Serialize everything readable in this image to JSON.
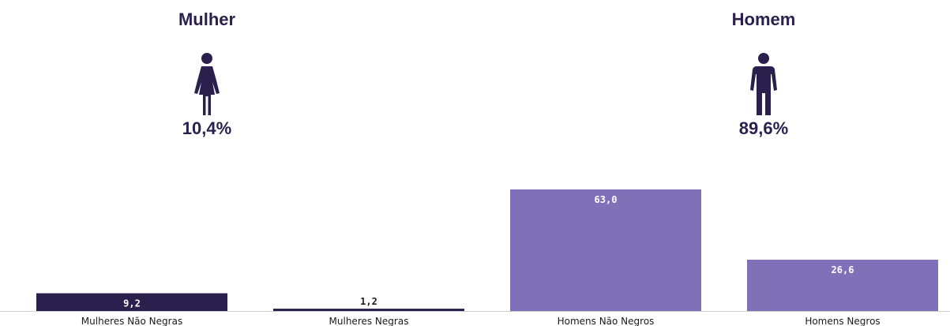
{
  "groups": {
    "female": {
      "title": "Mulher",
      "percent": "10,4%"
    },
    "male": {
      "title": "Homem",
      "percent": "89,6%"
    }
  },
  "colors": {
    "dark_bar": "#2a1f4d",
    "light_bar": "#8070b8",
    "text": "#2a1f4d"
  },
  "icons": {
    "female": "female-person-icon",
    "male": "male-person-icon"
  },
  "chart_data": {
    "type": "bar",
    "categories": [
      "Mulheres Não Negras",
      "Mulheres Negras",
      "Homens Não Negros",
      "Homens Negros"
    ],
    "values": [
      9.2,
      1.2,
      63.0,
      26.6
    ],
    "value_labels": [
      "9,2",
      "1,2",
      "63,0",
      "26,6"
    ],
    "bar_colors": [
      "#2a1f4d",
      "#2a1f4d",
      "#8070b8",
      "#8070b8"
    ],
    "ylim": [
      0,
      63.0
    ],
    "grid": false,
    "legend": "none"
  }
}
